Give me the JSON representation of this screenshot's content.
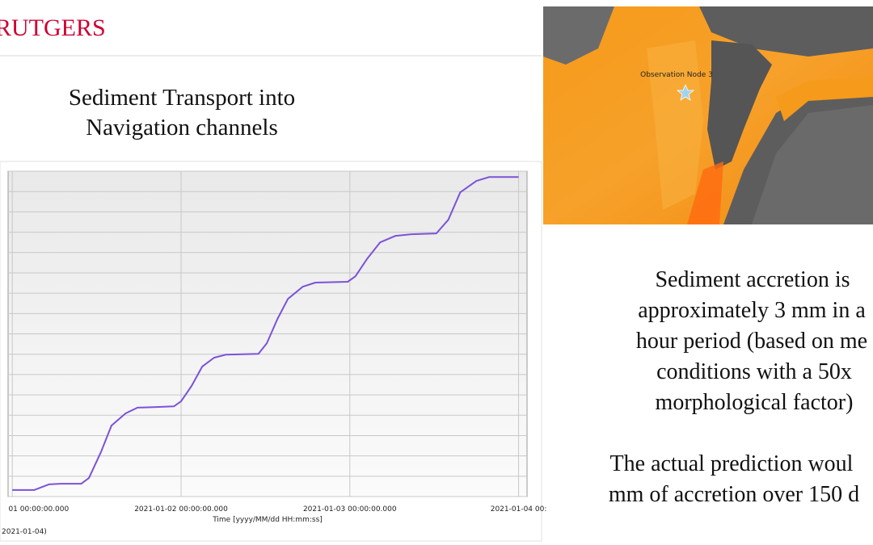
{
  "slide": {
    "logo": "RUTGERS",
    "title_lines": [
      "Sediment Transport into",
      "Navigation channels"
    ],
    "map_label": "Observation Node 3",
    "body_lines": [
      "Sediment accretion is",
      "approximately 3 mm in a",
      "hour period (based on me",
      "conditions with a 50x",
      "morphological factor)"
    ],
    "body_lines_2": [
      "The actual prediction woul",
      "mm of accretion over 150 d"
    ],
    "footer_fragment": "2021-01-04)"
  },
  "chart_data": {
    "type": "line",
    "x_label": "Time [yyyy/MM/dd HH:mm:ss]",
    "x": [
      0,
      3.1,
      5.2,
      6.9,
      9.8,
      10.9,
      12.6,
      14.1,
      16.1,
      17.8,
      20.1,
      23.0,
      24,
      25.5,
      27.0,
      28.7,
      30.4,
      35.0,
      36.2,
      37.7,
      39.2,
      41.3,
      43.1,
      47.7,
      48.8,
      50.5,
      52.3,
      54.5,
      56.8,
      60.3,
      62.0,
      63.7,
      66.0,
      67.8,
      72.0
    ],
    "series": [
      {
        "color": "#7b52d9",
        "values": [
          0.32,
          0.32,
          0.6,
          0.63,
          0.63,
          0.91,
          2.18,
          3.49,
          4.09,
          4.37,
          4.4,
          4.44,
          4.68,
          5.44,
          6.39,
          6.83,
          6.98,
          7.02,
          7.54,
          8.73,
          9.72,
          10.32,
          10.52,
          10.56,
          10.83,
          11.71,
          12.5,
          12.82,
          12.9,
          12.94,
          13.61,
          14.96,
          15.52,
          15.71,
          15.71
        ]
      }
    ],
    "xlim": [
      -0.6,
      73.2
    ],
    "xticks": [
      {
        "value": 0,
        "label": "01 00:00:00.000"
      },
      {
        "value": 24,
        "label": "2021-01-02 00:00:00.000"
      },
      {
        "value": 48,
        "label": "2021-01-03 00:00:00.000"
      },
      {
        "value": 72,
        "label": "2021-01-04 00:"
      }
    ],
    "ylim": [
      0,
      16
    ],
    "yticks": [
      0,
      1,
      2,
      3,
      4,
      5,
      6,
      7,
      8,
      9,
      10,
      11,
      12,
      13,
      14,
      15,
      16
    ],
    "grid": true
  }
}
